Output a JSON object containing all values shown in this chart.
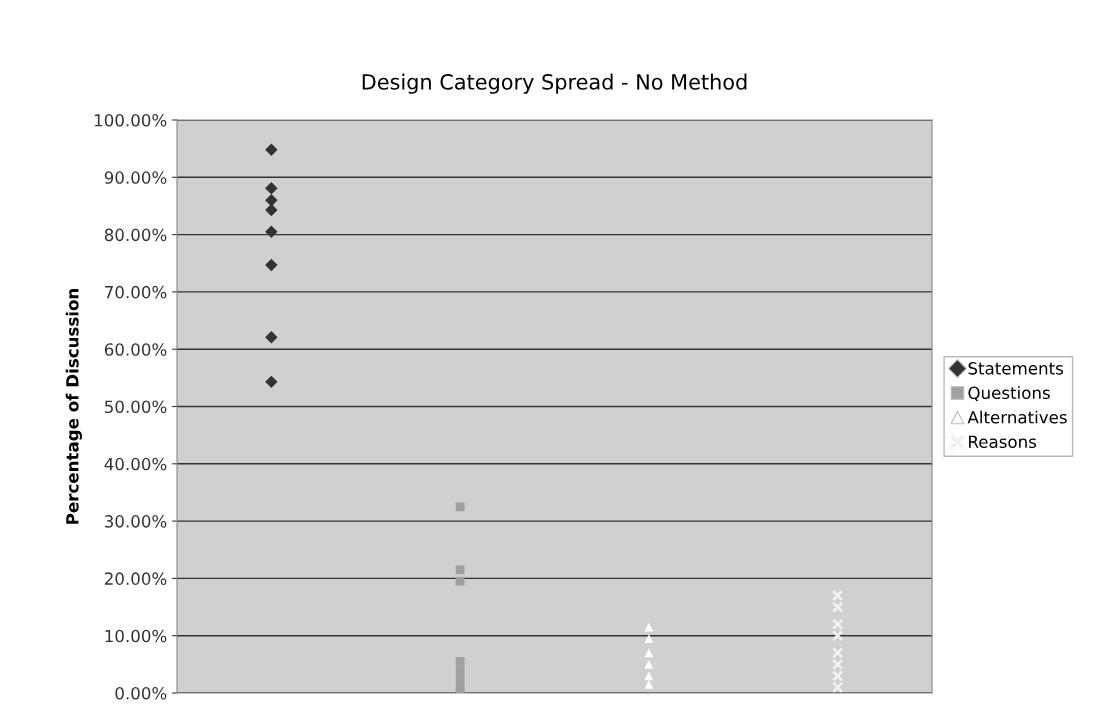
{
  "chart_data": {
    "type": "scatter",
    "title": "Design Category Spread - No Method",
    "ylabel": "Percentage of Discussion",
    "categories": [
      null,
      null,
      null,
      null
    ],
    "ylim": [
      0,
      100
    ],
    "yticks": [
      {
        "value": 0,
        "label": "0.00%"
      },
      {
        "value": 10,
        "label": "10.00%"
      },
      {
        "value": 20,
        "label": "20.00%"
      },
      {
        "value": 30,
        "label": "30.00%"
      },
      {
        "value": 40,
        "label": "40.00%"
      },
      {
        "value": 50,
        "label": "50.00%"
      },
      {
        "value": 60,
        "label": "60.00%"
      },
      {
        "value": 70,
        "label": "70.00%"
      },
      {
        "value": 80,
        "label": "80.00%"
      },
      {
        "value": 90,
        "label": "90.00%"
      },
      {
        "value": 100,
        "label": "100.00%"
      }
    ],
    "grid": "y",
    "legend": "right",
    "series": [
      {
        "name": "Statements",
        "color": "#333333",
        "marker": "diamond",
        "values": [
          94.8,
          null,
          null,
          null
        ]
      },
      {
        "color": "#333333",
        "marker": "diamond",
        "values": [
          88.1,
          null,
          null,
          null
        ]
      },
      {
        "color": "#333333",
        "marker": "diamond",
        "values": [
          86.0,
          null,
          null,
          null
        ]
      },
      {
        "color": "#333333",
        "marker": "diamond",
        "values": [
          84.3,
          null,
          null,
          null
        ]
      },
      {
        "color": "#333333",
        "marker": "diamond",
        "values": [
          80.5,
          null,
          null,
          null
        ]
      },
      {
        "color": "#333333",
        "marker": "diamond",
        "values": [
          74.7,
          null,
          null,
          null
        ]
      },
      {
        "color": "#333333",
        "marker": "diamond",
        "values": [
          62.1,
          null,
          null,
          null
        ]
      },
      {
        "color": "#333333",
        "marker": "diamond",
        "values": [
          54.3,
          null,
          null,
          null
        ]
      },
      {
        "name": "Questions",
        "color": "#a0a0a0",
        "marker": "square",
        "values": [
          null,
          32.5,
          null,
          null
        ]
      },
      {
        "color": "#a0a0a0",
        "marker": "square",
        "values": [
          null,
          21.5,
          null,
          null
        ]
      },
      {
        "color": "#a0a0a0",
        "marker": "square",
        "values": [
          null,
          19.5,
          null,
          null
        ]
      },
      {
        "color": "#a0a0a0",
        "marker": "square",
        "values": [
          null,
          5.5,
          null,
          null
        ]
      },
      {
        "color": "#a0a0a0",
        "marker": "square",
        "values": [
          null,
          4,
          null,
          null
        ]
      },
      {
        "color": "#a0a0a0",
        "marker": "square",
        "values": [
          null,
          2.5,
          null,
          null
        ]
      },
      {
        "color": "#a0a0a0",
        "marker": "square",
        "values": [
          null,
          1,
          null,
          null
        ]
      },
      {
        "color": "#a0a0a0",
        "marker": "square",
        "values": [
          null,
          0,
          null,
          null
        ]
      },
      {
        "name": "Alternatives",
        "color": "#ffffff",
        "marker": "triangle",
        "values": [
          null,
          null,
          11.5,
          null
        ]
      },
      {
        "color": "#ffffff",
        "marker": "triangle",
        "values": [
          null,
          null,
          9.5,
          null
        ]
      },
      {
        "color": "#ffffff",
        "marker": "triangle",
        "values": [
          null,
          null,
          7,
          null
        ]
      },
      {
        "color": "#ffffff",
        "marker": "triangle",
        "values": [
          null,
          null,
          5,
          null
        ]
      },
      {
        "color": "#ffffff",
        "marker": "triangle",
        "values": [
          null,
          null,
          3,
          null
        ]
      },
      {
        "color": "#ffffff",
        "marker": "triangle",
        "values": [
          null,
          null,
          1.5,
          null
        ]
      },
      {
        "name": "Reasons",
        "color": "#f0f0f0",
        "marker": "cross",
        "values": [
          null,
          null,
          null,
          17
        ]
      },
      {
        "color": "#f0f0f0",
        "marker": "cross",
        "values": [
          null,
          null,
          null,
          15
        ]
      },
      {
        "color": "#f0f0f0",
        "marker": "cross",
        "values": [
          null,
          null,
          null,
          12
        ]
      },
      {
        "color": "#f0f0f0",
        "marker": "cross",
        "values": [
          null,
          null,
          null,
          10
        ]
      },
      {
        "color": "#f0f0f0",
        "marker": "cross",
        "values": [
          null,
          null,
          null,
          7
        ]
      },
      {
        "color": "#f0f0f0",
        "marker": "cross",
        "values": [
          null,
          null,
          null,
          5
        ]
      },
      {
        "color": "#f0f0f0",
        "marker": "cross",
        "values": [
          null,
          null,
          null,
          3
        ]
      },
      {
        "color": "#f0f0f0",
        "marker": "cross",
        "values": [
          null,
          null,
          null,
          1
        ]
      }
    ]
  }
}
